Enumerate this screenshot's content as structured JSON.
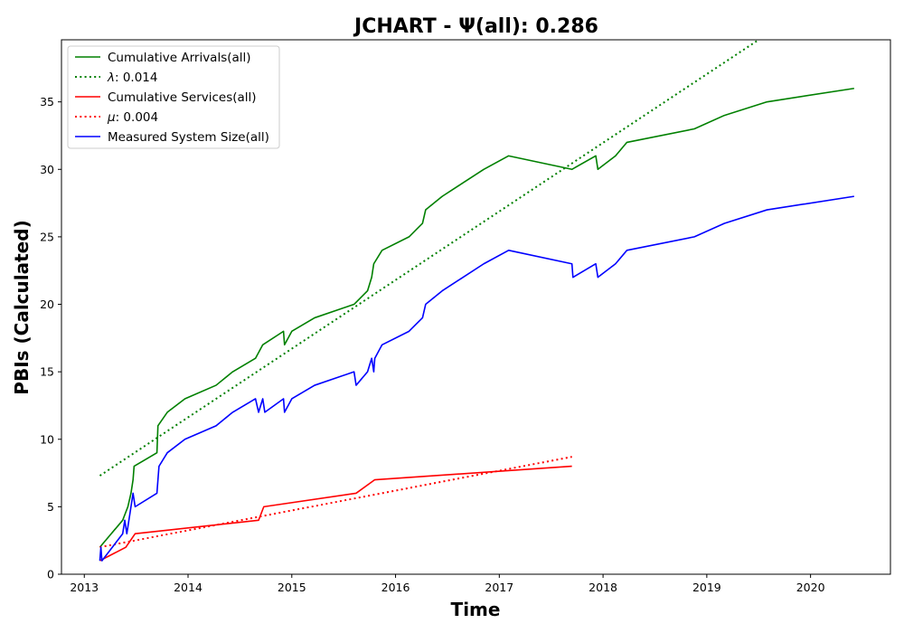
{
  "chart_data": {
    "type": "line",
    "title": "JCHART -  Ψ(all): 0.286",
    "xlabel": "Time",
    "ylabel": "PBIs (Calculated)",
    "xlim": [
      2012.78,
      2020.77
    ],
    "ylim": [
      0,
      39.6
    ],
    "x_ticks": [
      2013,
      2014,
      2015,
      2016,
      2017,
      2018,
      2019,
      2020
    ],
    "x_tick_labels": [
      "2013",
      "2014",
      "2015",
      "2016",
      "2017",
      "2018",
      "2019",
      "2020"
    ],
    "y_ticks": [
      0,
      5,
      10,
      15,
      20,
      25,
      30,
      35
    ],
    "y_tick_labels": [
      "0",
      "5",
      "10",
      "15",
      "20",
      "25",
      "30",
      "35"
    ],
    "grid": false,
    "legend_position": "top-left",
    "series": [
      {
        "name": "Cumulative Arrivals(all)",
        "color": "#008000",
        "style": "solid",
        "legend_label": "Cumulative Arrivals(all)",
        "points": [
          [
            2013.15,
            2
          ],
          [
            2013.37,
            4
          ],
          [
            2013.42,
            5
          ],
          [
            2013.45,
            6
          ],
          [
            2013.47,
            7
          ],
          [
            2013.48,
            8
          ],
          [
            2013.7,
            9
          ],
          [
            2013.71,
            11
          ],
          [
            2013.8,
            12
          ],
          [
            2013.97,
            13
          ],
          [
            2014.27,
            14
          ],
          [
            2014.43,
            15
          ],
          [
            2014.65,
            16
          ],
          [
            2014.72,
            17
          ],
          [
            2014.92,
            18
          ],
          [
            2014.93,
            17
          ],
          [
            2015.0,
            18
          ],
          [
            2015.22,
            19
          ],
          [
            2015.6,
            20
          ],
          [
            2015.73,
            21
          ],
          [
            2015.77,
            22
          ],
          [
            2015.79,
            23
          ],
          [
            2015.87,
            24
          ],
          [
            2016.13,
            25
          ],
          [
            2016.26,
            26
          ],
          [
            2016.29,
            27
          ],
          [
            2016.45,
            28
          ],
          [
            2016.65,
            29
          ],
          [
            2016.85,
            30
          ],
          [
            2017.09,
            31
          ],
          [
            2017.7,
            30
          ],
          [
            2017.93,
            31
          ],
          [
            2017.95,
            30
          ],
          [
            2018.12,
            31
          ],
          [
            2018.23,
            32
          ],
          [
            2018.88,
            33
          ],
          [
            2019.17,
            34
          ],
          [
            2019.58,
            35
          ],
          [
            2020.42,
            36
          ]
        ]
      },
      {
        "name": "λ",
        "color": "#008000",
        "style": "dotted",
        "legend_label": "λ: 0.014",
        "legend_symbol": "λ",
        "legend_value": ": 0.014",
        "points": [
          [
            2013.15,
            7.3
          ],
          [
            2019.5,
            39.6
          ]
        ]
      },
      {
        "name": "Cumulative Services(all)",
        "color": "#ff0000",
        "style": "solid",
        "legend_label": "Cumulative Services(all)",
        "points": [
          [
            2013.15,
            1
          ],
          [
            2013.4,
            2
          ],
          [
            2013.49,
            3
          ],
          [
            2014.68,
            4
          ],
          [
            2014.73,
            5
          ],
          [
            2015.62,
            6
          ],
          [
            2015.8,
            7
          ],
          [
            2017.7,
            8
          ]
        ]
      },
      {
        "name": "μ",
        "color": "#ff0000",
        "style": "dotted",
        "legend_label": "μ: 0.004",
        "legend_symbol": "μ",
        "legend_value": ": 0.004",
        "points": [
          [
            2013.15,
            2.0
          ],
          [
            2017.7,
            8.7
          ]
        ]
      },
      {
        "name": "Measured System Size(all)",
        "color": "#0000ff",
        "style": "solid",
        "legend_label": "Measured System Size(all)",
        "points": [
          [
            2013.15,
            1
          ],
          [
            2013.16,
            2
          ],
          [
            2013.17,
            1
          ],
          [
            2013.37,
            3
          ],
          [
            2013.39,
            4
          ],
          [
            2013.41,
            3
          ],
          [
            2013.45,
            5
          ],
          [
            2013.47,
            6
          ],
          [
            2013.49,
            5
          ],
          [
            2013.7,
            6
          ],
          [
            2013.72,
            8
          ],
          [
            2013.8,
            9
          ],
          [
            2013.97,
            10
          ],
          [
            2014.27,
            11
          ],
          [
            2014.43,
            12
          ],
          [
            2014.65,
            13
          ],
          [
            2014.68,
            12
          ],
          [
            2014.72,
            13
          ],
          [
            2014.74,
            12
          ],
          [
            2014.92,
            13
          ],
          [
            2014.93,
            12
          ],
          [
            2015.0,
            13
          ],
          [
            2015.22,
            14
          ],
          [
            2015.6,
            15
          ],
          [
            2015.62,
            14
          ],
          [
            2015.73,
            15
          ],
          [
            2015.77,
            16
          ],
          [
            2015.79,
            15
          ],
          [
            2015.8,
            16
          ],
          [
            2015.87,
            17
          ],
          [
            2016.13,
            18
          ],
          [
            2016.26,
            19
          ],
          [
            2016.29,
            20
          ],
          [
            2016.45,
            21
          ],
          [
            2016.65,
            22
          ],
          [
            2016.85,
            23
          ],
          [
            2017.09,
            24
          ],
          [
            2017.7,
            23
          ],
          [
            2017.71,
            22
          ],
          [
            2017.93,
            23
          ],
          [
            2017.95,
            22
          ],
          [
            2018.12,
            23
          ],
          [
            2018.23,
            24
          ],
          [
            2018.88,
            25
          ],
          [
            2019.17,
            26
          ],
          [
            2019.58,
            27
          ],
          [
            2020.42,
            28
          ]
        ]
      }
    ]
  }
}
